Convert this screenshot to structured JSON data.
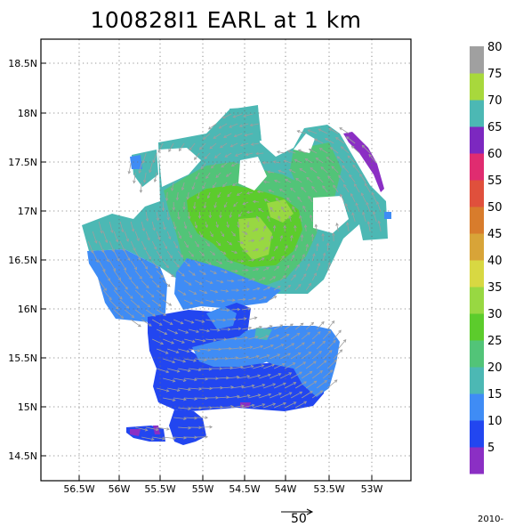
{
  "title": "100828I1 EARL at 1 km",
  "axes": {
    "lon_ticks": [
      "56.5W",
      "56W",
      "55.5W",
      "55W",
      "54.5W",
      "54W",
      "53.5W",
      "53W"
    ],
    "lat_ticks": [
      "18.5N",
      "18N",
      "17.5N",
      "17N",
      "16.5N",
      "16N",
      "15.5N",
      "15N",
      "14.5N"
    ]
  },
  "colorbar": {
    "labels": [
      "5",
      "10",
      "15",
      "20",
      "25",
      "30",
      "35",
      "40",
      "45",
      "50",
      "55",
      "60",
      "65",
      "70",
      "75",
      "80"
    ],
    "colors": [
      "#8b2fc4",
      "#2246f0",
      "#3f8cf5",
      "#4cb8b4",
      "#52c478",
      "#5ccc2c",
      "#98d842",
      "#d8d842",
      "#d8a438",
      "#d87c2c",
      "#e0503c",
      "#e02c70",
      "#7c28c0",
      "#4cb8b4",
      "#a8d83c",
      "#a0a0a0"
    ]
  },
  "wind_scale": {
    "label": "50"
  },
  "footer": {
    "date": "2010-"
  },
  "map_colors": {
    "light_blue": "#3f8cf5",
    "dark_blue": "#2246f0",
    "teal": "#4cb8b4",
    "green": "#52c478",
    "bright_green": "#5ccc2c",
    "yellow_green": "#98d842",
    "purple": "#8b2fc4",
    "arrow": "#9e9e9e"
  }
}
